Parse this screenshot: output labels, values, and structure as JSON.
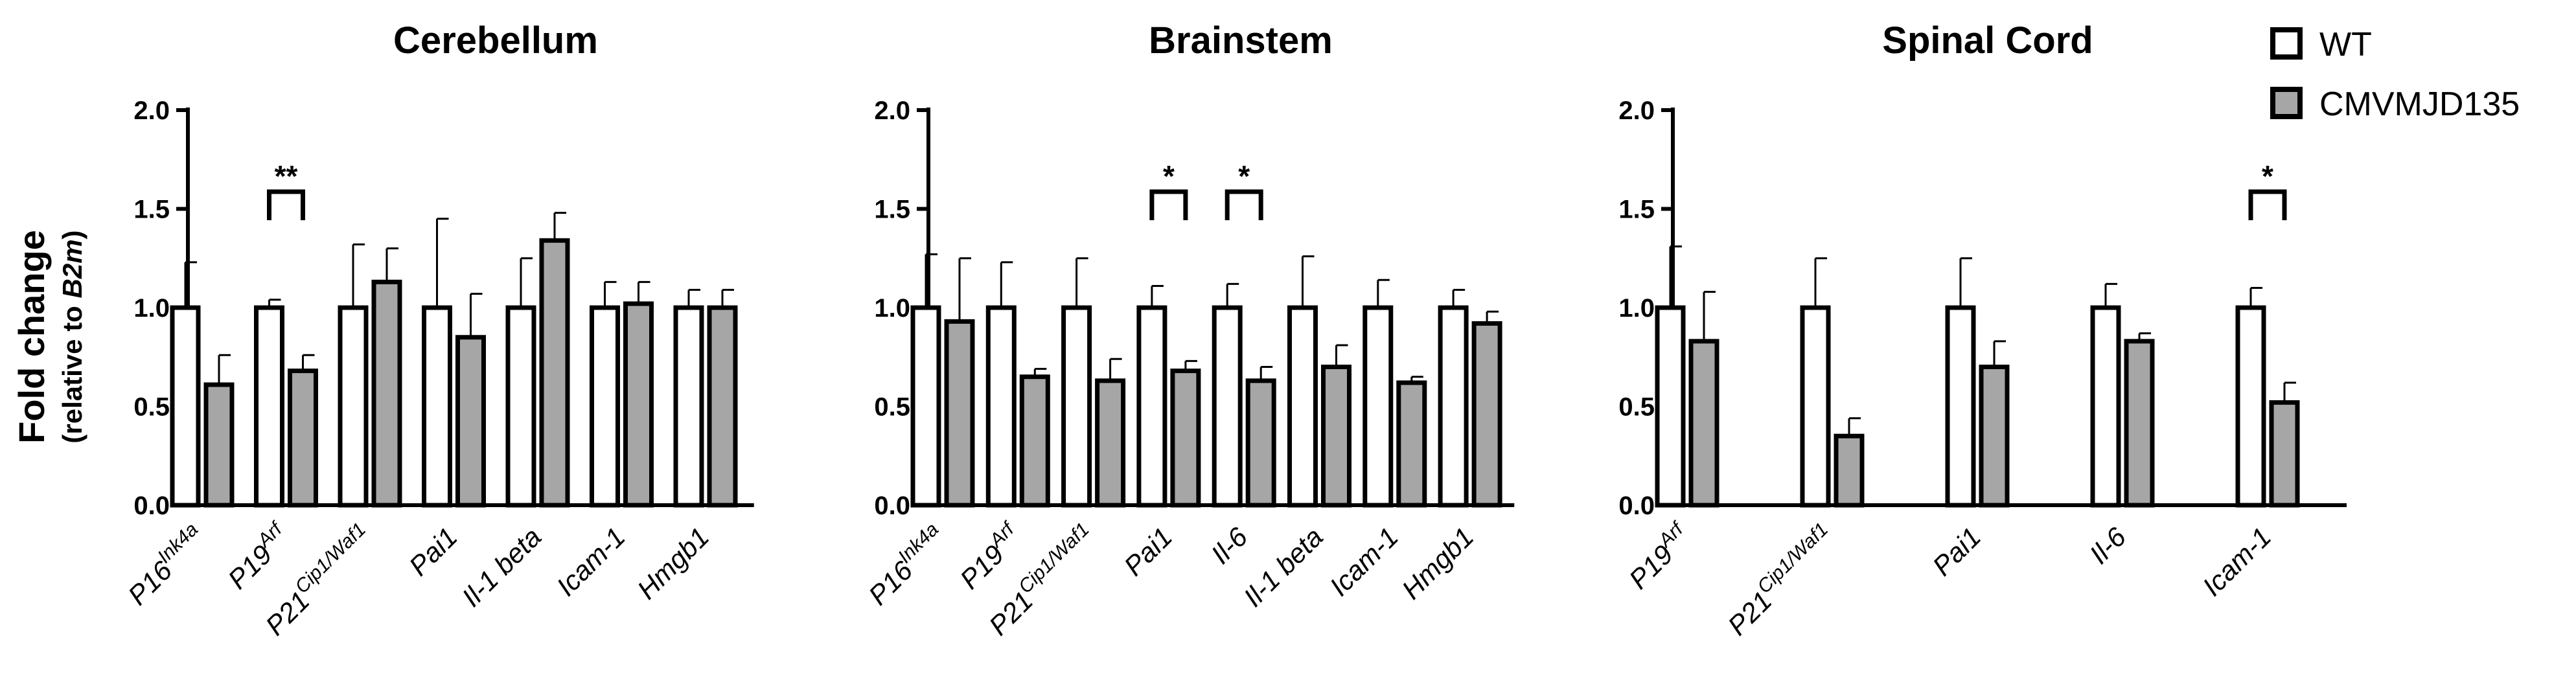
{
  "figure": {
    "y_label": "Fold change",
    "y_sublabel_prefix": "(relative to ",
    "y_sublabel_gene": "B2m",
    "y_sublabel_suffix": ")",
    "legend": [
      {
        "label": "WT",
        "color": "#ffffff"
      },
      {
        "label": "CMVMJD135",
        "color": "#a6a6a6"
      }
    ]
  },
  "colors": {
    "wt": "#ffffff",
    "mutant": "#a6a6a6",
    "stroke": "#000000"
  },
  "chart_data": [
    {
      "type": "bar",
      "title": "Cerebellum",
      "ylim": [
        0,
        2.0
      ],
      "yticks": [
        "0.0",
        "0.5",
        "1.0",
        "1.5",
        "2.0"
      ],
      "categories": [
        {
          "base": "P16",
          "sup": "Ink4a"
        },
        {
          "base": "P19",
          "sup": "Arf"
        },
        {
          "base": "P21",
          "sup": "Cip1/Waf1"
        },
        {
          "base": "Pai1",
          "sup": ""
        },
        {
          "base": "Il-1 beta",
          "sup": ""
        },
        {
          "base": "Icam-1",
          "sup": ""
        },
        {
          "base": "Hmgb1",
          "sup": ""
        }
      ],
      "series": [
        {
          "name": "WT",
          "values": [
            1.0,
            1.0,
            1.0,
            1.0,
            1.0,
            1.0,
            1.0
          ],
          "errors": [
            0.23,
            0.04,
            0.32,
            0.45,
            0.25,
            0.13,
            0.09
          ]
        },
        {
          "name": "CMVMJD135",
          "values": [
            0.61,
            0.68,
            1.13,
            0.85,
            1.34,
            1.02,
            1.0
          ],
          "errors": [
            0.15,
            0.08,
            0.17,
            0.22,
            0.14,
            0.11,
            0.09
          ]
        }
      ],
      "significance": [
        {
          "category_index": 1,
          "label": "**"
        }
      ]
    },
    {
      "type": "bar",
      "title": "Brainstem",
      "ylim": [
        0,
        2.0
      ],
      "yticks": [
        "0.0",
        "0.5",
        "1.0",
        "1.5",
        "2.0"
      ],
      "categories": [
        {
          "base": "P16",
          "sup": "Ink4a"
        },
        {
          "base": "P19",
          "sup": "Arf"
        },
        {
          "base": "P21",
          "sup": "Cip1/Waf1"
        },
        {
          "base": "Pai1",
          "sup": ""
        },
        {
          "base": "Il-6",
          "sup": ""
        },
        {
          "base": "Il-1 beta",
          "sup": ""
        },
        {
          "base": "Icam-1",
          "sup": ""
        },
        {
          "base": "Hmgb1",
          "sup": ""
        }
      ],
      "series": [
        {
          "name": "WT",
          "values": [
            1.0,
            1.0,
            1.0,
            1.0,
            1.0,
            1.0,
            1.0,
            1.0
          ],
          "errors": [
            0.27,
            0.23,
            0.25,
            0.11,
            0.12,
            0.26,
            0.14,
            0.09
          ]
        },
        {
          "name": "CMVMJD135",
          "values": [
            0.93,
            0.65,
            0.63,
            0.68,
            0.63,
            0.7,
            0.62,
            0.92
          ],
          "errors": [
            0.32,
            0.04,
            0.11,
            0.05,
            0.07,
            0.11,
            0.03,
            0.06
          ]
        }
      ],
      "significance": [
        {
          "category_index": 3,
          "label": "*"
        },
        {
          "category_index": 4,
          "label": "*"
        }
      ]
    },
    {
      "type": "bar",
      "title": "Spinal Cord",
      "ylim": [
        0,
        2.0
      ],
      "yticks": [
        "0.0",
        "0.5",
        "1.0",
        "1.5",
        "2.0"
      ],
      "categories": [
        {
          "base": "P19",
          "sup": "Arf"
        },
        {
          "base": "P21",
          "sup": "Cip1/Waf1"
        },
        {
          "base": "Pai1",
          "sup": ""
        },
        {
          "base": "Il-6",
          "sup": ""
        },
        {
          "base": "Icam-1",
          "sup": ""
        }
      ],
      "series": [
        {
          "name": "WT",
          "values": [
            1.0,
            1.0,
            1.0,
            1.0,
            1.0
          ],
          "errors": [
            0.31,
            0.25,
            0.25,
            0.12,
            0.1
          ]
        },
        {
          "name": "CMVMJD135",
          "values": [
            0.83,
            0.35,
            0.7,
            0.83,
            0.52
          ],
          "errors": [
            0.25,
            0.09,
            0.13,
            0.04,
            0.1
          ]
        }
      ],
      "significance": [
        {
          "category_index": 4,
          "label": "*"
        }
      ]
    }
  ]
}
